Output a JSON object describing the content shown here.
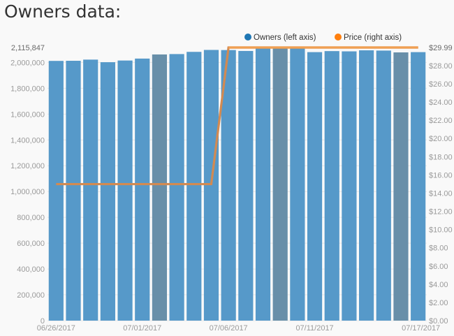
{
  "page": {
    "heading": "Owners data:"
  },
  "chart_data": {
    "type": "bar",
    "legend": {
      "placement": "top-right",
      "items": [
        {
          "name": "Owners (left axis)",
          "color": "#1f77b4"
        },
        {
          "name": "Price (right axis)",
          "color": "#ff7f0e"
        }
      ]
    },
    "x_ticks": [
      {
        "label": "06/26/2017",
        "index": 0
      },
      {
        "label": "07/01/2017",
        "index": 5
      },
      {
        "label": "07/06/2017",
        "index": 10
      },
      {
        "label": "07/11/2017",
        "index": 15
      },
      {
        "label": "07/17/2017",
        "index": 21
      }
    ],
    "left_axis": {
      "min": 0,
      "max": 2115847,
      "max_label": "2,115,847",
      "ticks": [
        {
          "v": 0,
          "label": "0"
        },
        {
          "v": 200000,
          "label": "200,000"
        },
        {
          "v": 400000,
          "label": "400,000"
        },
        {
          "v": 600000,
          "label": "600,000"
        },
        {
          "v": 800000,
          "label": "800,000"
        },
        {
          "v": 1000000,
          "label": "1,000,000"
        },
        {
          "v": 1200000,
          "label": "1,200,000"
        },
        {
          "v": 1400000,
          "label": "1,400,000"
        },
        {
          "v": 1600000,
          "label": "1,600,000"
        },
        {
          "v": 1800000,
          "label": "1,800,000"
        },
        {
          "v": 2000000,
          "label": "2,000,000"
        }
      ]
    },
    "right_axis": {
      "min": 0,
      "max": 29.99,
      "max_label": "$29.99",
      "ticks": [
        {
          "v": 0,
          "label": "$0.00"
        },
        {
          "v": 2,
          "label": "$2.00"
        },
        {
          "v": 4,
          "label": "$4.00"
        },
        {
          "v": 6,
          "label": "$6.00"
        },
        {
          "v": 8,
          "label": "$8.00"
        },
        {
          "v": 10,
          "label": "$10.00"
        },
        {
          "v": 12,
          "label": "$12.00"
        },
        {
          "v": 14,
          "label": "$14.00"
        },
        {
          "v": 16,
          "label": "$16.00"
        },
        {
          "v": 18,
          "label": "$18.00"
        },
        {
          "v": 20,
          "label": "$20.00"
        },
        {
          "v": 22,
          "label": "$22.00"
        },
        {
          "v": 24,
          "label": "$24.00"
        },
        {
          "v": 26,
          "label": "$26.00"
        },
        {
          "v": 28,
          "label": "$28.00"
        }
      ]
    },
    "colors": {
      "bar": "#5699c9",
      "bar_highlight": "#688fa9",
      "price_line": "#f0a052",
      "price_line_overlap": "#d28a52"
    },
    "series": [
      {
        "name": "Owners (left axis)",
        "axis": "left",
        "type": "bar",
        "values": [
          2012000,
          2013000,
          2022000,
          2002000,
          2015000,
          2030000,
          2062000,
          2065000,
          2082000,
          2097000,
          2096000,
          2089000,
          2113000,
          2108000,
          2116000,
          2080000,
          2088000,
          2086000,
          2094000,
          2092000,
          2078000,
          2080000
        ],
        "highlighted_indices": [
          6,
          13,
          20
        ]
      },
      {
        "name": "Price (right axis)",
        "axis": "right",
        "type": "line",
        "values": [
          14.99,
          14.99,
          14.99,
          14.99,
          14.99,
          14.99,
          14.99,
          14.99,
          14.99,
          14.99,
          29.99,
          29.99,
          29.99,
          29.99,
          29.99,
          29.99,
          29.99,
          29.99,
          29.99,
          29.99,
          29.99,
          29.99
        ]
      }
    ],
    "grid": true
  }
}
